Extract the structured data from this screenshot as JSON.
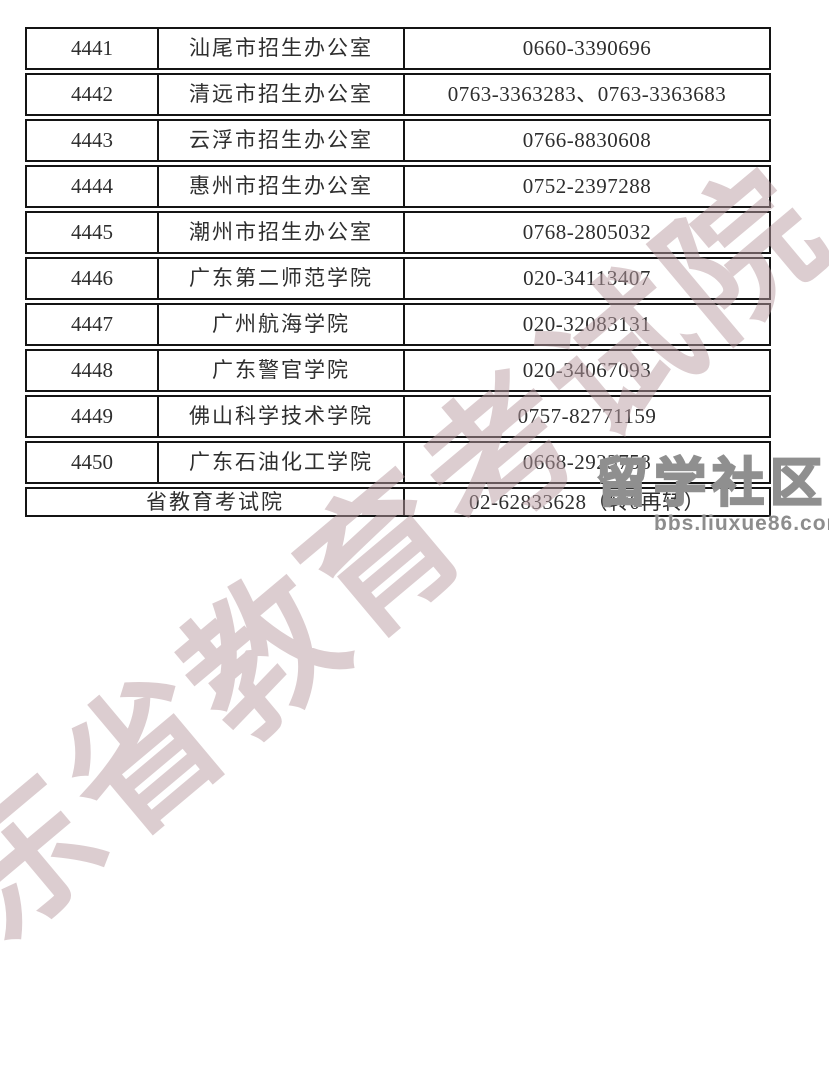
{
  "table": {
    "rows": [
      {
        "code": "4441",
        "name": "汕尾市招生办公室",
        "phone": "0660-3390696"
      },
      {
        "code": "4442",
        "name": "清远市招生办公室",
        "phone": "0763-3363283、0763-3363683"
      },
      {
        "code": "4443",
        "name": "云浮市招生办公室",
        "phone": "0766-8830608"
      },
      {
        "code": "4444",
        "name": "惠州市招生办公室",
        "phone": "0752-2397288"
      },
      {
        "code": "4445",
        "name": "潮州市招生办公室",
        "phone": "0768-2805032"
      },
      {
        "code": "4446",
        "name": "广东第二师范学院",
        "phone": "020-34113407"
      },
      {
        "code": "4447",
        "name": "广州航海学院",
        "phone": "020-32083131"
      },
      {
        "code": "4448",
        "name": "广东警官学院",
        "phone": "020-34067093"
      },
      {
        "code": "4449",
        "name": "佛山科学技术学院",
        "phone": "0757-82771159"
      },
      {
        "code": "4450",
        "name": "广东石油化工学院",
        "phone": "0668-2923758"
      }
    ],
    "footer": {
      "name": "省教育考试院",
      "phone": "02-62833628（转0再转）"
    }
  },
  "watermarks": {
    "diagonal_text": "广东省教育考试院",
    "diagonal_color": "#ba9ca1",
    "logo_text": "留学社区",
    "logo_url": "bbs.liuxue86.com",
    "logo_color": "#8f8f8f"
  }
}
